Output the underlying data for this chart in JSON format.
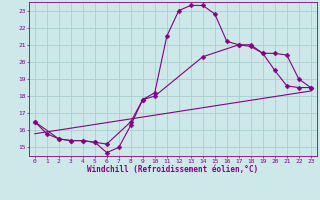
{
  "xlabel": "Windchill (Refroidissement éolien,°C)",
  "background_color": "#cce8e8",
  "line_color": "#880088",
  "grid_color": "#aad0d0",
  "x_ticks": [
    0,
    1,
    2,
    3,
    4,
    5,
    6,
    7,
    8,
    9,
    10,
    11,
    12,
    13,
    14,
    15,
    16,
    17,
    18,
    19,
    20,
    21,
    22,
    23
  ],
  "y_ticks": [
    15,
    16,
    17,
    18,
    19,
    20,
    21,
    22,
    23
  ],
  "xlim": [
    -0.5,
    23.5
  ],
  "ylim": [
    14.5,
    23.5
  ],
  "curve1_x": [
    0,
    1,
    2,
    3,
    4,
    5,
    6,
    7,
    8,
    9,
    10,
    11,
    12,
    13,
    14,
    15,
    16,
    17,
    18,
    19,
    20,
    21,
    22,
    23
  ],
  "curve1_y": [
    16.5,
    15.8,
    15.5,
    15.4,
    15.4,
    15.3,
    14.7,
    15.0,
    16.3,
    17.8,
    18.2,
    21.5,
    23.0,
    23.3,
    23.3,
    22.8,
    21.2,
    21.0,
    20.9,
    20.5,
    19.5,
    18.6,
    18.5,
    18.5
  ],
  "curve2_x": [
    0,
    2,
    3,
    4,
    5,
    6,
    8,
    9,
    10,
    14,
    17,
    18,
    19,
    20,
    21,
    22,
    23
  ],
  "curve2_y": [
    16.5,
    15.5,
    15.4,
    15.4,
    15.3,
    15.2,
    16.5,
    17.8,
    18.0,
    20.3,
    21.0,
    21.0,
    20.5,
    20.5,
    20.4,
    19.0,
    18.5
  ],
  "curve3_x": [
    0,
    23
  ],
  "curve3_y": [
    15.8,
    18.3
  ],
  "markersize": 2.5
}
